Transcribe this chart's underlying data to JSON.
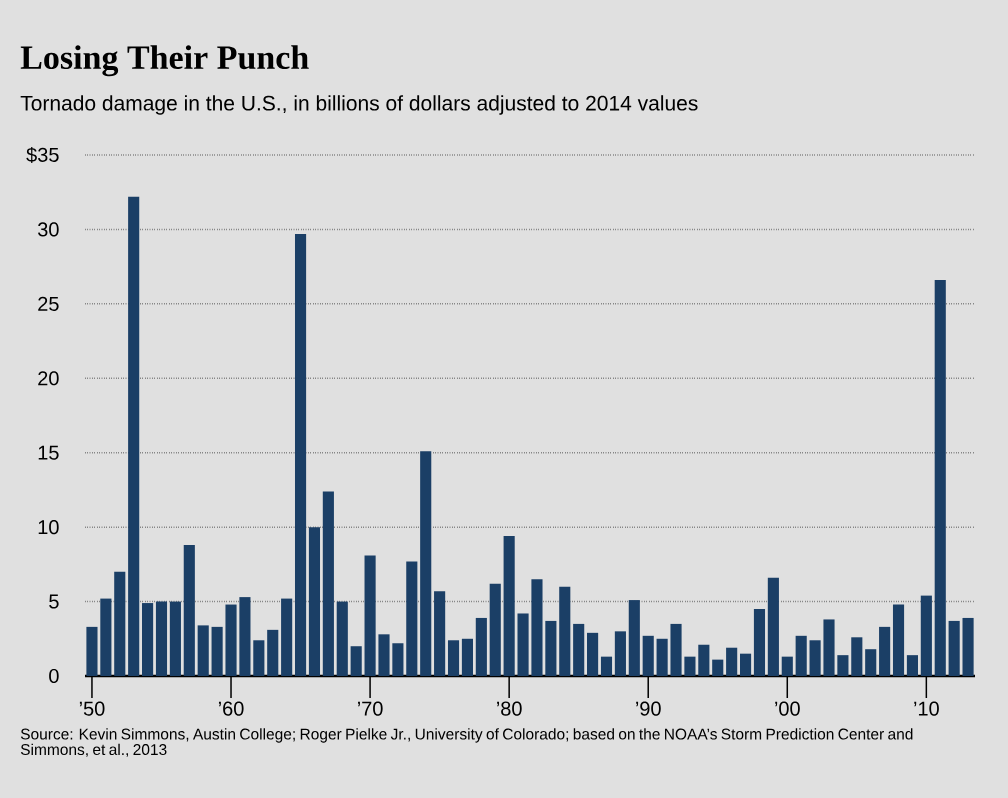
{
  "chart_data": {
    "type": "bar",
    "title": "Losing Their Punch",
    "subtitle": "Tornado damage in the U.S., in billions of dollars adjusted to 2014 values",
    "annotations": [
      "Source: Kevin Simmons, Austin College; Roger Pielke Jr., University of Colorado; based on the NOAA’s Storm Prediction Center and Simmons, et al., 2013"
    ],
    "x": [
      1950,
      1951,
      1952,
      1953,
      1954,
      1955,
      1956,
      1957,
      1958,
      1959,
      1960,
      1961,
      1962,
      1963,
      1964,
      1965,
      1966,
      1967,
      1968,
      1969,
      1970,
      1971,
      1972,
      1973,
      1974,
      1975,
      1976,
      1977,
      1978,
      1979,
      1980,
      1981,
      1982,
      1983,
      1984,
      1985,
      1986,
      1987,
      1988,
      1989,
      1990,
      1991,
      1992,
      1993,
      1994,
      1995,
      1996,
      1997,
      1998,
      1999,
      2000,
      2001,
      2002,
      2003,
      2004,
      2005,
      2006,
      2007,
      2008,
      2009,
      2010,
      2011,
      2012,
      2013
    ],
    "values": [
      3.3,
      5.2,
      7.0,
      32.2,
      4.9,
      5.0,
      5.0,
      8.8,
      3.4,
      3.3,
      4.8,
      5.3,
      2.4,
      3.1,
      5.2,
      29.7,
      10.0,
      12.4,
      5.0,
      2.0,
      8.1,
      2.8,
      2.2,
      7.7,
      15.1,
      5.7,
      2.4,
      2.5,
      3.9,
      6.2,
      9.4,
      4.2,
      6.5,
      3.7,
      6.0,
      3.5,
      2.9,
      1.3,
      3.0,
      5.1,
      2.7,
      2.5,
      3.5,
      1.3,
      2.1,
      1.1,
      1.9,
      1.5,
      4.5,
      6.6,
      1.3,
      2.7,
      2.4,
      3.8,
      1.4,
      2.6,
      1.8,
      3.3,
      4.8,
      1.4,
      5.4,
      26.6,
      3.7,
      3.9
    ],
    "color": "#1b3f66",
    "xlim": [
      1949.5,
      2013.5
    ],
    "xticks": [
      {
        "value": 1950,
        "label": "’50"
      },
      {
        "value": 1960,
        "label": "’60"
      },
      {
        "value": 1970,
        "label": "’70"
      },
      {
        "value": 1980,
        "label": "’80"
      },
      {
        "value": 1990,
        "label": "’90"
      },
      {
        "value": 2000,
        "label": "’00"
      },
      {
        "value": 2010,
        "label": "’10"
      }
    ],
    "ylim": [
      0,
      35
    ],
    "yticks": [
      0,
      5,
      10,
      15,
      20,
      25,
      30,
      {
        "value": 35,
        "label": "$35"
      }
    ],
    "grid": "y"
  }
}
